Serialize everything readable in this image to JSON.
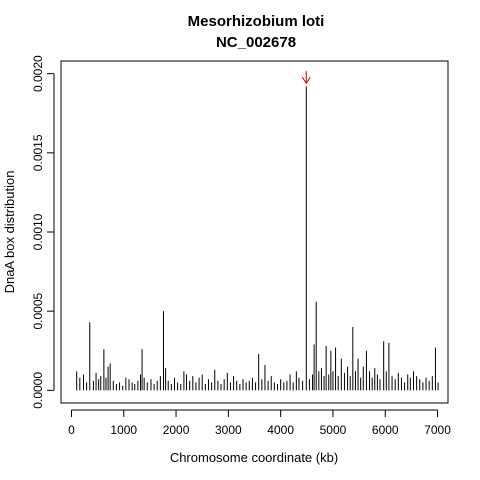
{
  "chart_data": {
    "type": "bar",
    "title": "Mesorhizobium loti",
    "subtitle": "NC_002678",
    "xlabel": "Chromosome coordinate (kb)",
    "ylabel": "DnaA box distribution",
    "xlim": [
      -200,
      7200
    ],
    "ylim": [
      -8e-05,
      0.00208
    ],
    "x_ticks": [
      0,
      1000,
      2000,
      3000,
      4000,
      5000,
      6000,
      7000
    ],
    "x_tick_labels": [
      "0",
      "1000",
      "2000",
      "3000",
      "4000",
      "5000",
      "6000",
      "7000"
    ],
    "y_ticks": [
      0,
      0.0005,
      0.001,
      0.0015,
      0.002
    ],
    "y_tick_labels": [
      "0.0000",
      "0.0005",
      "0.0010",
      "0.0015",
      "0.0020"
    ],
    "grid": false,
    "legend": "none",
    "bar_color": "#000000",
    "marker_color": "#cc0000",
    "origin_marker": {
      "x": 4490,
      "y": 0.00194,
      "symbol": "down-arrow"
    },
    "bars": [
      [
        100,
        0.00012
      ],
      [
        160,
        8e-05
      ],
      [
        230,
        0.0001
      ],
      [
        290,
        5e-05
      ],
      [
        350,
        0.00043
      ],
      [
        420,
        6e-05
      ],
      [
        470,
        0.00011
      ],
      [
        520,
        7e-05
      ],
      [
        560,
        9e-05
      ],
      [
        620,
        0.00026
      ],
      [
        660,
        8e-05
      ],
      [
        700,
        0.00015
      ],
      [
        740,
        0.00017
      ],
      [
        800,
        6e-05
      ],
      [
        860,
        4e-05
      ],
      [
        920,
        5e-05
      ],
      [
        980,
        3e-05
      ],
      [
        1040,
        8e-05
      ],
      [
        1100,
        7e-05
      ],
      [
        1160,
        5e-05
      ],
      [
        1210,
        4e-05
      ],
      [
        1270,
        6e-05
      ],
      [
        1320,
        0.0001
      ],
      [
        1350,
        0.00026
      ],
      [
        1390,
        8e-05
      ],
      [
        1450,
        5e-05
      ],
      [
        1520,
        7e-05
      ],
      [
        1580,
        4e-05
      ],
      [
        1640,
        6e-05
      ],
      [
        1700,
        9e-05
      ],
      [
        1760,
        0.0005
      ],
      [
        1800,
        0.00014
      ],
      [
        1850,
        6e-05
      ],
      [
        1910,
        4e-05
      ],
      [
        1970,
        8e-05
      ],
      [
        2030,
        5e-05
      ],
      [
        2090,
        4e-05
      ],
      [
        2150,
        0.00012
      ],
      [
        2200,
        0.0001
      ],
      [
        2260,
        6e-05
      ],
      [
        2320,
        9e-05
      ],
      [
        2380,
        5e-05
      ],
      [
        2440,
        8e-05
      ],
      [
        2500,
        0.0001
      ],
      [
        2560,
        4e-05
      ],
      [
        2620,
        7e-05
      ],
      [
        2680,
        5e-05
      ],
      [
        2740,
        0.00013
      ],
      [
        2800,
        6e-05
      ],
      [
        2860,
        4e-05
      ],
      [
        2920,
        7e-05
      ],
      [
        2980,
        0.00011
      ],
      [
        3040,
        5e-05
      ],
      [
        3100,
        9e-05
      ],
      [
        3160,
        6e-05
      ],
      [
        3220,
        4e-05
      ],
      [
        3280,
        7e-05
      ],
      [
        3340,
        5e-05
      ],
      [
        3400,
        6e-05
      ],
      [
        3460,
        8e-05
      ],
      [
        3520,
        5e-05
      ],
      [
        3580,
        0.00023
      ],
      [
        3640,
        7e-05
      ],
      [
        3700,
        0.00016
      ],
      [
        3760,
        6e-05
      ],
      [
        3820,
        9e-05
      ],
      [
        3880,
        5e-05
      ],
      [
        3940,
        4e-05
      ],
      [
        4000,
        7e-05
      ],
      [
        4060,
        5e-05
      ],
      [
        4120,
        6e-05
      ],
      [
        4180,
        0.0001
      ],
      [
        4240,
        5e-05
      ],
      [
        4300,
        0.00012
      ],
      [
        4350,
        8e-05
      ],
      [
        4420,
        6e-05
      ],
      [
        4490,
        0.00192
      ],
      [
        4550,
        7e-05
      ],
      [
        4610,
        0.0001
      ],
      [
        4640,
        0.00029
      ],
      [
        4680,
        0.00056
      ],
      [
        4730,
        0.00012
      ],
      [
        4780,
        0.00014
      ],
      [
        4830,
        9e-05
      ],
      [
        4870,
        0.00028
      ],
      [
        4920,
        0.0001
      ],
      [
        4960,
        0.00025
      ],
      [
        5000,
        0.00012
      ],
      [
        5050,
        0.00027
      ],
      [
        5100,
        9e-05
      ],
      [
        5160,
        0.0002
      ],
      [
        5220,
        0.00011
      ],
      [
        5280,
        0.00015
      ],
      [
        5330,
        9e-05
      ],
      [
        5380,
        0.0004
      ],
      [
        5430,
        0.00012
      ],
      [
        5480,
        0.0002
      ],
      [
        5530,
        8e-05
      ],
      [
        5580,
        0.00015
      ],
      [
        5640,
        0.00025
      ],
      [
        5700,
        0.00012
      ],
      [
        5750,
        8e-05
      ],
      [
        5800,
        0.00014
      ],
      [
        5850,
        0.0001
      ],
      [
        5900,
        7e-05
      ],
      [
        5970,
        0.00031
      ],
      [
        6020,
        0.00012
      ],
      [
        6070,
        0.0003
      ],
      [
        6130,
        9e-05
      ],
      [
        6190,
        7e-05
      ],
      [
        6250,
        0.00011
      ],
      [
        6310,
        8e-05
      ],
      [
        6370,
        5e-05
      ],
      [
        6430,
        0.0001
      ],
      [
        6480,
        8e-05
      ],
      [
        6540,
        0.00012
      ],
      [
        6600,
        9e-05
      ],
      [
        6660,
        7e-05
      ],
      [
        6720,
        5e-05
      ],
      [
        6780,
        8e-05
      ],
      [
        6840,
        6e-05
      ],
      [
        6900,
        9e-05
      ],
      [
        6960,
        0.00027
      ],
      [
        7010,
        5e-05
      ]
    ]
  }
}
